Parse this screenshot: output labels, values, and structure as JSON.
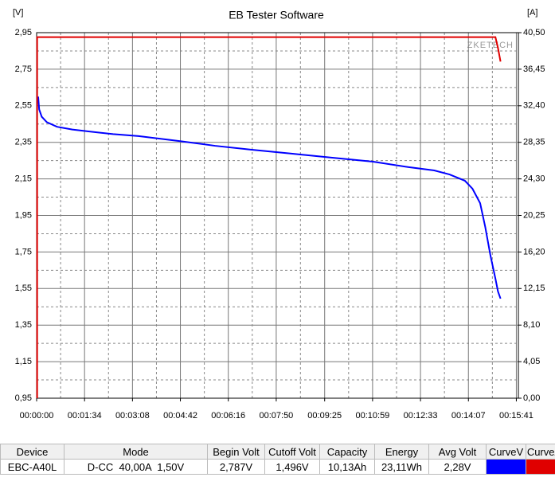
{
  "chart_data": {
    "type": "line",
    "title": "EB Tester Software",
    "y_label": "[V]",
    "y2_label": "[A]",
    "watermark": "ZKETECH",
    "xlim": [
      0,
      945
    ],
    "ylim": [
      0.95,
      2.95
    ],
    "y2lim": [
      0,
      40.5
    ],
    "grid": true,
    "xticks": [
      {
        "value": 0,
        "label": "00:00:00"
      },
      {
        "value": 94,
        "label": "00:01:34"
      },
      {
        "value": 188,
        "label": "00:03:08"
      },
      {
        "value": 282,
        "label": "00:04:42"
      },
      {
        "value": 376,
        "label": "00:06:16"
      },
      {
        "value": 470,
        "label": "00:07:50"
      },
      {
        "value": 565,
        "label": "00:09:25"
      },
      {
        "value": 659,
        "label": "00:10:59"
      },
      {
        "value": 753,
        "label": "00:12:33"
      },
      {
        "value": 847,
        "label": "00:14:07"
      },
      {
        "value": 941,
        "label": "00:15:41"
      }
    ],
    "yticks": [
      {
        "value": 0.95,
        "label": "0,95"
      },
      {
        "value": 1.15,
        "label": "1,15"
      },
      {
        "value": 1.35,
        "label": "1,35"
      },
      {
        "value": 1.55,
        "label": "1,55"
      },
      {
        "value": 1.75,
        "label": "1,75"
      },
      {
        "value": 1.95,
        "label": "1,95"
      },
      {
        "value": 2.15,
        "label": "2,15"
      },
      {
        "value": 2.35,
        "label": "2,35"
      },
      {
        "value": 2.55,
        "label": "2,55"
      },
      {
        "value": 2.75,
        "label": "2,75"
      },
      {
        "value": 2.95,
        "label": "2,95"
      }
    ],
    "y2ticks": [
      {
        "value": 0,
        "label": "0,00"
      },
      {
        "value": 4.05,
        "label": "4,05"
      },
      {
        "value": 8.1,
        "label": "8,10"
      },
      {
        "value": 12.15,
        "label": "12,15"
      },
      {
        "value": 16.2,
        "label": "16,20"
      },
      {
        "value": 20.25,
        "label": "20,25"
      },
      {
        "value": 24.3,
        "label": "24,30"
      },
      {
        "value": 28.35,
        "label": "28,35"
      },
      {
        "value": 32.4,
        "label": "32,40"
      },
      {
        "value": 36.45,
        "label": "36,45"
      },
      {
        "value": 40.5,
        "label": "40,50"
      }
    ],
    "series": [
      {
        "name": "CurveV",
        "color": "#0000ff",
        "axis": "y",
        "x": [
          3,
          5,
          10,
          20,
          40,
          70,
          100,
          150,
          200,
          280,
          350,
          420,
          500,
          580,
          660,
          730,
          780,
          810,
          840,
          855,
          870,
          880,
          890,
          900,
          905,
          910
        ],
        "values": [
          2.6,
          2.53,
          2.49,
          2.46,
          2.435,
          2.42,
          2.41,
          2.395,
          2.384,
          2.357,
          2.331,
          2.31,
          2.288,
          2.266,
          2.244,
          2.214,
          2.196,
          2.174,
          2.14,
          2.096,
          2.017,
          1.887,
          1.734,
          1.604,
          1.534,
          1.495
        ]
      },
      {
        "name": "CurveA",
        "color": "#e00000",
        "axis": "y2",
        "x": [
          1,
          1,
          5,
          900,
          905,
          910
        ],
        "values": [
          0,
          40.0,
          40.0,
          40.0,
          38.8,
          37.3
        ]
      }
    ]
  },
  "table": {
    "headers": [
      "Device",
      "Mode",
      "Begin Volt",
      "Cutoff Volt",
      "Capacity",
      "Energy",
      "Avg Volt",
      "CurveV",
      "CurveA"
    ],
    "rows": [
      [
        "EBC-A40L",
        "D-CC  40,00A  1,50V",
        "2,787V",
        "1,496V",
        "10,13Ah",
        "23,11Wh",
        "2,28V"
      ]
    ]
  }
}
